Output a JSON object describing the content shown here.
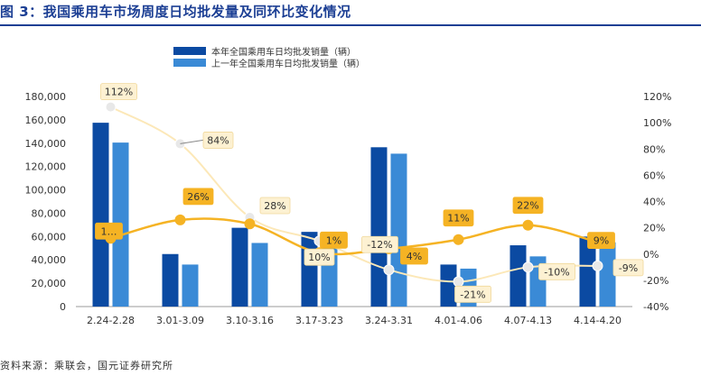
{
  "header": {
    "title": "图 3：我国乘用车市场周度日均批发量及同环比变化情况"
  },
  "footer": {
    "source": "资料来源：乘联会，国元证券研究所"
  },
  "colors": {
    "title": "#1c3f94",
    "bar_current": "#0b4aa2",
    "bar_previous": "#3a8ad6",
    "line_yoy": "#fce8b8",
    "line_mom": "#f5b324",
    "label_light_fill": "#fdf1d2",
    "label_dark_fill": "#f5b324",
    "axis_text": "#333333",
    "axis_line": "#9a9a9a"
  },
  "chart_data": {
    "type": "bar",
    "categories": [
      "2.24-2.28",
      "3.01-3.09",
      "3.10-3.16",
      "3.17-3.23",
      "3.24-3.31",
      "4.01-4.06",
      "4.07-4.13",
      "4.14-4.20"
    ],
    "series": [
      {
        "name": "本年全国乘用车日均批发销量（辆）",
        "type": "bar",
        "axis": "left",
        "values": [
          157500,
          45000,
          67500,
          64000,
          136500,
          36000,
          52500,
          60000
        ]
      },
      {
        "name": "上一年全国乘用车日均批发销量（辆）",
        "type": "bar",
        "axis": "left",
        "values": [
          140500,
          36000,
          54500,
          63500,
          131000,
          32500,
          43000,
          55000
        ]
      },
      {
        "name": "",
        "type": "line",
        "axis": "right",
        "style": "light",
        "values": [
          112,
          84,
          28,
          10,
          -12,
          -21,
          -10,
          -9
        ],
        "labels": [
          "112%",
          "84%",
          "28%",
          "10%",
          "-12%",
          "-21%",
          "-10%",
          "-9%"
        ]
      },
      {
        "name": "",
        "type": "line",
        "axis": "right",
        "style": "dark",
        "values": [
          12,
          26,
          23,
          1,
          4,
          11,
          22,
          9
        ],
        "labels": [
          "1…",
          "26%",
          "",
          "1%",
          "4%",
          "11%",
          "22%",
          "9%"
        ]
      }
    ],
    "y_left": {
      "min": 0,
      "max": 180000,
      "step": 20000,
      "ticks": [
        "0",
        "20,000",
        "40,000",
        "60,000",
        "80,000",
        "100,000",
        "120,000",
        "140,000",
        "160,000",
        "180,000"
      ]
    },
    "y_right": {
      "min": -40,
      "max": 120,
      "step": 20,
      "ticks": [
        "-40%",
        "-20%",
        "0%",
        "20%",
        "40%",
        "60%",
        "80%",
        "100%",
        "120%"
      ]
    },
    "legend_position": "top-center",
    "grid": false
  }
}
